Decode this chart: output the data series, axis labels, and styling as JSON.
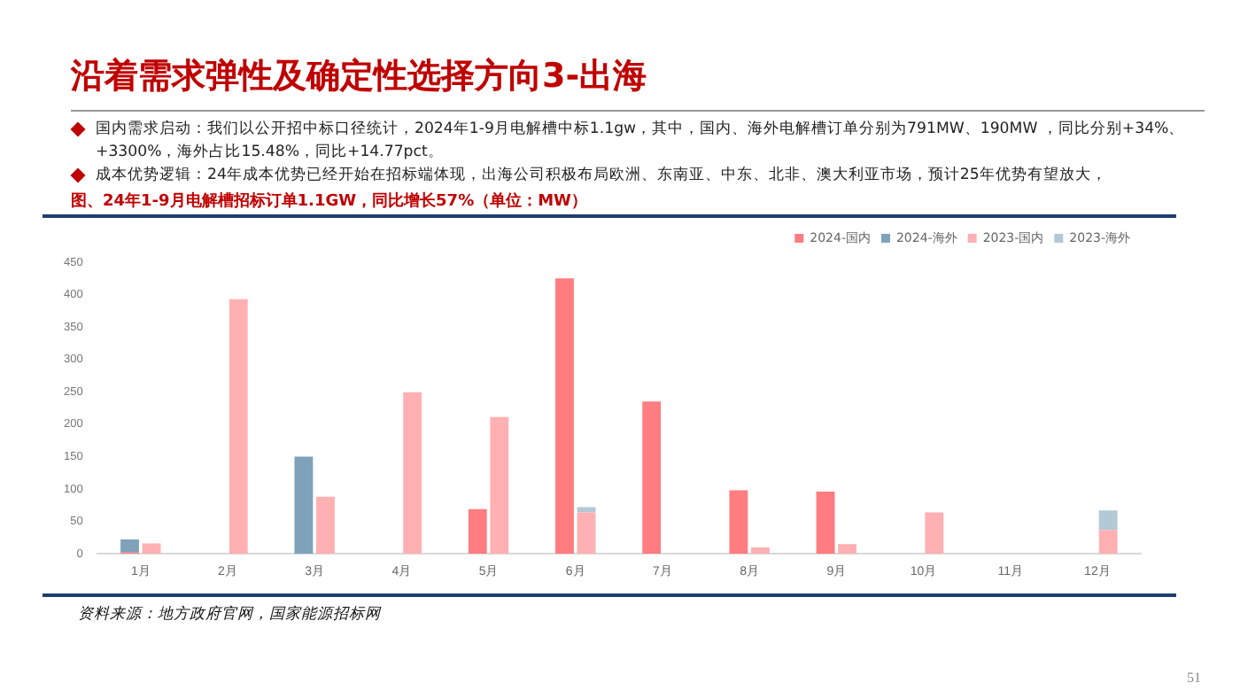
{
  "chart_data": {
    "type": "bar",
    "title": "沿着需求弹性及确定性选择方向3-出海",
    "subtitle": "图、24年1-9月电解槽招标订单1.1GW，同比增长57%（单位：MW）",
    "annotations": [
      "国内需求启动：我们以公开招中标口径统计，2024年1-9月电解槽中标1.1gw，其中，国内、海外电解槽订单分别为791MW、190MW ，同比分别+34%、+3300%，海外占比15.48%，同比+14.77pct。",
      "成本优势逻辑：24年成本优势已经开始在招标端体现，出海公司积极布局欧洲、东南亚、中东、北非、澳大利亚市场，预计25年优势有望放大，",
      "资料来源：地方政府官网，国家能源招标网",
      "51"
    ],
    "categories": [
      "1月",
      "2月",
      "3月",
      "4月",
      "5月",
      "6月",
      "7月",
      "8月",
      "9月",
      "10月",
      "11月",
      "12月"
    ],
    "series": [
      {
        "name": "2024-国内",
        "color": "#ff7c80",
        "values": [
          2,
          null,
          null,
          null,
          69,
          425,
          235,
          98,
          96,
          null,
          null,
          null
        ]
      },
      {
        "name": "2024-海外",
        "color": "#7fa2bb",
        "base": [
          2,
          null,
          0,
          null,
          null,
          null,
          null,
          null,
          null,
          null,
          null,
          null
        ],
        "values": [
          20,
          null,
          150,
          null,
          null,
          null,
          null,
          null,
          null,
          null,
          null,
          null
        ]
      },
      {
        "name": "2023-国内",
        "color": "#ffb0b3",
        "values": [
          16,
          393,
          88,
          249,
          211,
          64,
          null,
          10,
          15,
          64,
          null,
          37
        ]
      },
      {
        "name": "2023-海外",
        "color": "#b4c8d6",
        "base": [
          null,
          null,
          null,
          null,
          null,
          64,
          null,
          null,
          null,
          null,
          null,
          37
        ],
        "values": [
          null,
          null,
          null,
          null,
          null,
          8,
          null,
          null,
          null,
          null,
          null,
          30
        ]
      }
    ],
    "ylim": [
      0,
      450
    ],
    "yticks": [
      0,
      50,
      100,
      150,
      200,
      250,
      300,
      350,
      400,
      450
    ],
    "grid": false,
    "legend": "top right"
  }
}
